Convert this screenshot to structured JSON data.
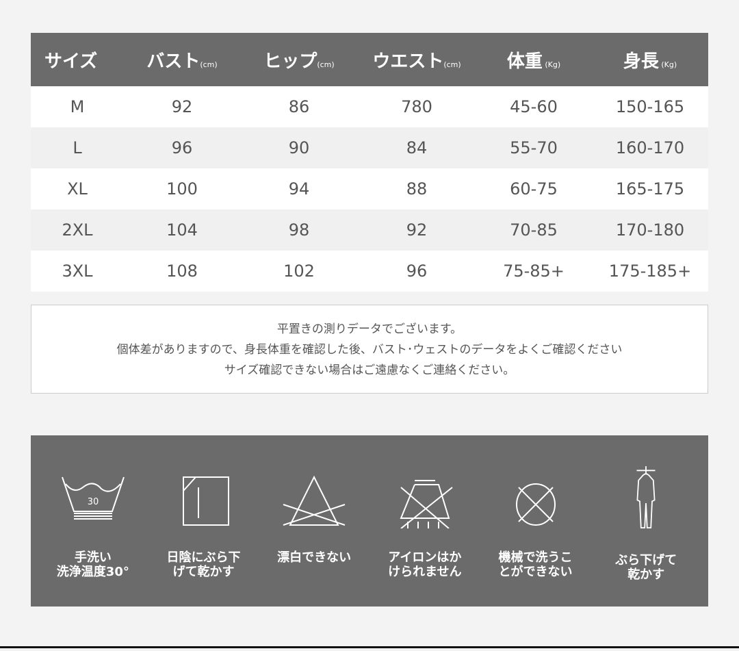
{
  "table": {
    "headers": [
      {
        "label": "サイズ",
        "unit": ""
      },
      {
        "label": "バスト",
        "unit": "(cm)"
      },
      {
        "label": "ヒップ",
        "unit": "(cm)"
      },
      {
        "label": "ウエスト",
        "unit": "(cm)"
      },
      {
        "label": "体重",
        "unit": " (Kg)"
      },
      {
        "label": "身長",
        "unit": " (Kg)"
      }
    ],
    "rows": [
      [
        "M",
        "92",
        "86",
        "780",
        "45-60",
        "150-165"
      ],
      [
        "L",
        "96",
        "90",
        "84",
        "55-70",
        "160-170"
      ],
      [
        "XL",
        "100",
        "94",
        "88",
        "60-75",
        "165-175"
      ],
      [
        "2XL",
        "104",
        "98",
        "92",
        "70-85",
        "170-180"
      ],
      [
        "3XL",
        "108",
        "102",
        "96",
        "75-85+",
        "175-185+"
      ]
    ]
  },
  "note": [
    "平置きの測りデータでございます。",
    "個体差がありますので、身長体重を確認した後、バスト･ウェストのデータをよくご確認ください",
    "サイズ確認できない場合はご遠慮なくご連絡ください。"
  ],
  "care": [
    {
      "icon": "hand-wash-30-icon",
      "label": "手洗い\n洗浄温度30°",
      "temp": "30"
    },
    {
      "icon": "line-dry-shade-icon",
      "label": "日陰にぶら下\nげて乾かす"
    },
    {
      "icon": "no-bleach-icon",
      "label": "漂白できない"
    },
    {
      "icon": "no-iron-icon",
      "label": "アイロンはか\nけられません"
    },
    {
      "icon": "no-machine-wash-icon",
      "label": "機械で洗うこ\nとができない"
    },
    {
      "icon": "hang-dry-icon",
      "label": "ぶら下げて\n乾かす"
    }
  ],
  "colors": {
    "header": "#6b6b6b",
    "panel": "#6b6b6b"
  }
}
